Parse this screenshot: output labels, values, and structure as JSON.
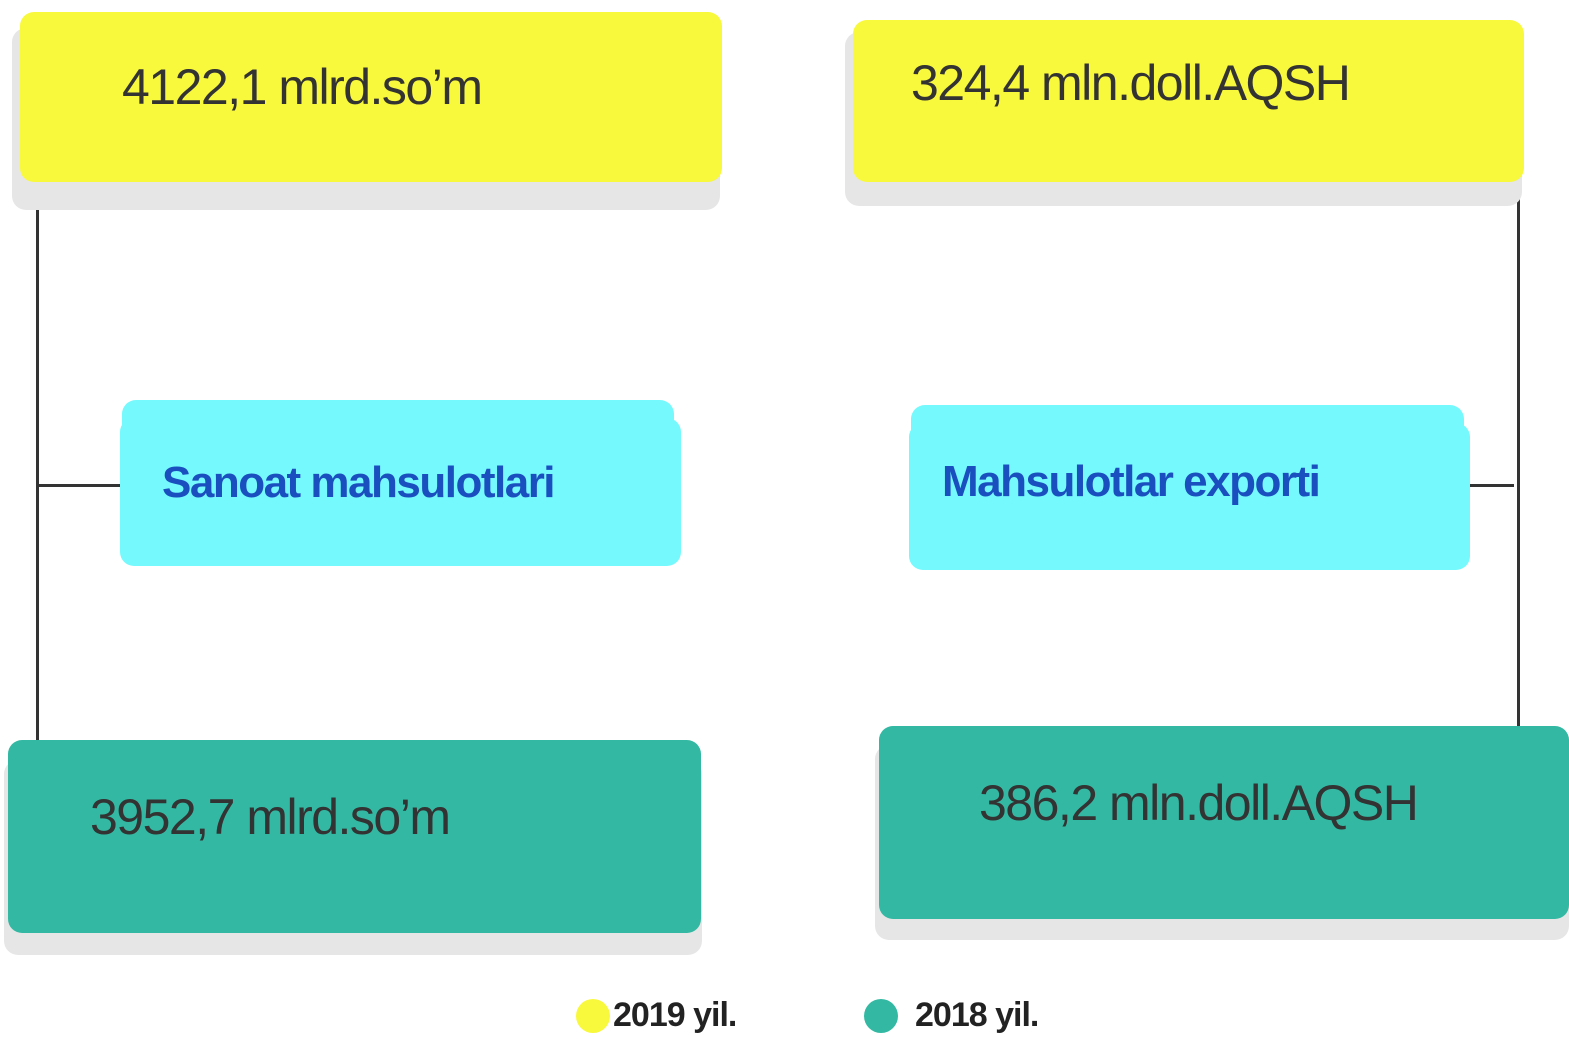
{
  "panels": [
    {
      "title": "Sanoat mahsulotlari",
      "value_2019": "4122,1 mlrd.so’m",
      "value_2018": "3952,7 mlrd.so’m"
    },
    {
      "title": "Mahsulotlar exporti",
      "value_2019": "324,4 mln.doll.AQSH",
      "value_2018": "386,2 mln.doll.AQSH"
    }
  ],
  "legend": [
    {
      "label": "2019 yil.",
      "color": "#f8f83c"
    },
    {
      "label": "2018 yil.",
      "color": "#33b9a3"
    }
  ]
}
